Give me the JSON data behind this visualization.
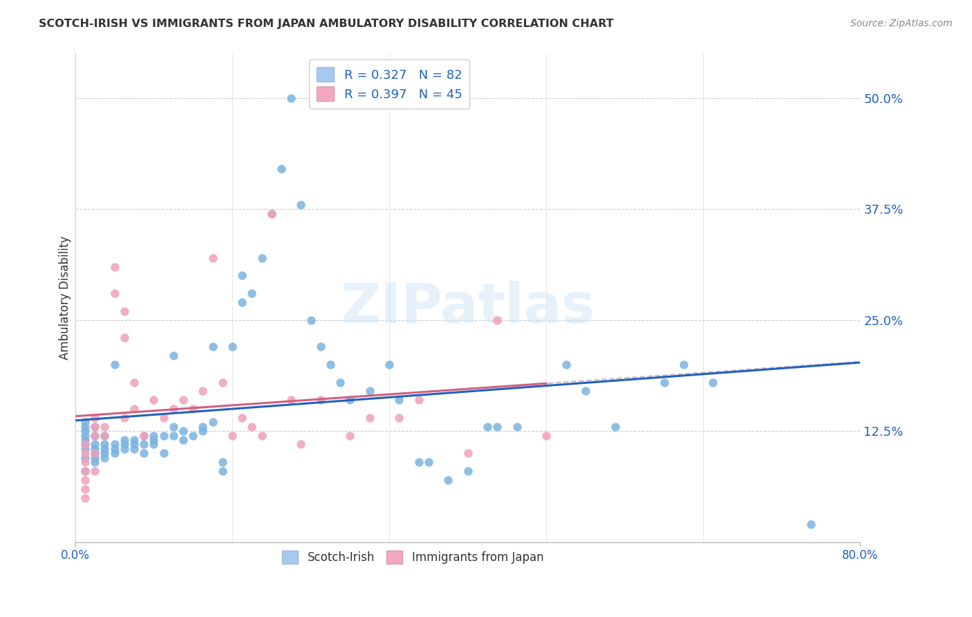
{
  "title": "SCOTCH-IRISH VS IMMIGRANTS FROM JAPAN AMBULATORY DISABILITY CORRELATION CHART",
  "source": "Source: ZipAtlas.com",
  "ylabel": "Ambulatory Disability",
  "ytick_labels": [
    "",
    "12.5%",
    "25.0%",
    "37.5%",
    "50.0%"
  ],
  "ytick_values": [
    0,
    0.125,
    0.25,
    0.375,
    0.5
  ],
  "xlim": [
    0.0,
    0.8
  ],
  "ylim": [
    0.0,
    0.55
  ],
  "legend_label1": "R = 0.327   N = 82",
  "legend_label2": "R = 0.397   N = 45",
  "legend_color1": "#a8c8f0",
  "legend_color2": "#f4a8c0",
  "color_blue": "#7ab3e0",
  "color_pink": "#f0a0b8",
  "watermark": "ZIPatlas",
  "scotch_irish_x": [
    0.01,
    0.01,
    0.01,
    0.01,
    0.01,
    0.01,
    0.01,
    0.01,
    0.01,
    0.02,
    0.02,
    0.02,
    0.02,
    0.02,
    0.02,
    0.02,
    0.03,
    0.03,
    0.03,
    0.03,
    0.03,
    0.04,
    0.04,
    0.04,
    0.04,
    0.05,
    0.05,
    0.05,
    0.06,
    0.06,
    0.06,
    0.07,
    0.07,
    0.07,
    0.08,
    0.08,
    0.08,
    0.09,
    0.09,
    0.1,
    0.1,
    0.1,
    0.11,
    0.11,
    0.12,
    0.13,
    0.13,
    0.14,
    0.14,
    0.15,
    0.15,
    0.16,
    0.17,
    0.17,
    0.18,
    0.19,
    0.2,
    0.21,
    0.22,
    0.23,
    0.24,
    0.25,
    0.26,
    0.27,
    0.28,
    0.3,
    0.32,
    0.33,
    0.35,
    0.36,
    0.38,
    0.4,
    0.42,
    0.43,
    0.45,
    0.5,
    0.52,
    0.55,
    0.6,
    0.62,
    0.65,
    0.75
  ],
  "scotch_irish_y": [
    0.095,
    0.105,
    0.11,
    0.115,
    0.12,
    0.125,
    0.13,
    0.135,
    0.08,
    0.09,
    0.095,
    0.1,
    0.105,
    0.11,
    0.12,
    0.13,
    0.095,
    0.1,
    0.105,
    0.11,
    0.12,
    0.1,
    0.105,
    0.11,
    0.2,
    0.105,
    0.11,
    0.115,
    0.105,
    0.11,
    0.115,
    0.1,
    0.11,
    0.12,
    0.11,
    0.115,
    0.12,
    0.1,
    0.12,
    0.12,
    0.13,
    0.21,
    0.115,
    0.125,
    0.12,
    0.125,
    0.13,
    0.22,
    0.135,
    0.08,
    0.09,
    0.22,
    0.27,
    0.3,
    0.28,
    0.32,
    0.37,
    0.42,
    0.5,
    0.38,
    0.25,
    0.22,
    0.2,
    0.18,
    0.16,
    0.17,
    0.2,
    0.16,
    0.09,
    0.09,
    0.07,
    0.08,
    0.13,
    0.13,
    0.13,
    0.2,
    0.17,
    0.13,
    0.18,
    0.2,
    0.18,
    0.02
  ],
  "japan_x": [
    0.01,
    0.01,
    0.01,
    0.01,
    0.01,
    0.01,
    0.01,
    0.02,
    0.02,
    0.02,
    0.02,
    0.02,
    0.03,
    0.03,
    0.04,
    0.04,
    0.05,
    0.05,
    0.05,
    0.06,
    0.06,
    0.07,
    0.08,
    0.09,
    0.1,
    0.11,
    0.12,
    0.13,
    0.14,
    0.15,
    0.16,
    0.17,
    0.18,
    0.19,
    0.2,
    0.22,
    0.23,
    0.25,
    0.28,
    0.3,
    0.33,
    0.35,
    0.4,
    0.43,
    0.48
  ],
  "japan_y": [
    0.05,
    0.06,
    0.07,
    0.08,
    0.09,
    0.1,
    0.11,
    0.08,
    0.1,
    0.12,
    0.13,
    0.14,
    0.12,
    0.13,
    0.28,
    0.31,
    0.14,
    0.23,
    0.26,
    0.15,
    0.18,
    0.12,
    0.16,
    0.14,
    0.15,
    0.16,
    0.15,
    0.17,
    0.32,
    0.18,
    0.12,
    0.14,
    0.13,
    0.12,
    0.37,
    0.16,
    0.11,
    0.16,
    0.12,
    0.14,
    0.14,
    0.16,
    0.1,
    0.25,
    0.12
  ]
}
